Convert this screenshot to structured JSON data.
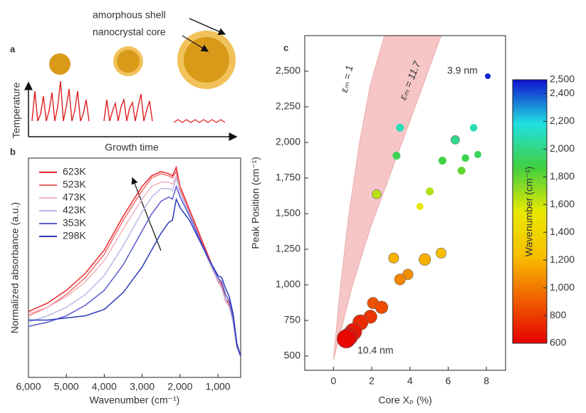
{
  "diagram": {
    "label": "a",
    "shell_label": "amorphous shell",
    "core_label": "nanocrystal core",
    "y_label": "Temperature",
    "x_label": "Growth time"
  },
  "chart_data": [
    {
      "type": "line",
      "panel_label": "b",
      "x_label": "Wavenumber (cm⁻¹)",
      "y_label": "Normalized absorbance (a.u.)",
      "xlim": [
        6000,
        400
      ],
      "ylim": [
        0,
        1
      ],
      "xticks": [
        {
          "value": 6000,
          "label": "6,000"
        },
        {
          "value": 5000,
          "label": "5,000"
        },
        {
          "value": 4000,
          "label": "4,000"
        },
        {
          "value": 3000,
          "label": "3,000"
        },
        {
          "value": 2000,
          "label": "2,000"
        },
        {
          "value": 1000,
          "label": "1,000"
        }
      ],
      "x": [
        6000,
        5500,
        5000,
        4500,
        4000,
        3500,
        3000,
        2750,
        2500,
        2300,
        2200,
        2100,
        2000,
        1750,
        1500,
        1250,
        1000,
        900,
        800,
        700,
        600,
        500,
        400
      ],
      "series": [
        {
          "name": "623K",
          "color": "#e8242a",
          "values": [
            0.29,
            0.33,
            0.39,
            0.47,
            0.58,
            0.74,
            0.88,
            0.93,
            0.95,
            0.94,
            0.93,
            0.97,
            0.88,
            0.77,
            0.66,
            0.55,
            0.44,
            0.42,
            0.35,
            0.33,
            0.25,
            0.12,
            0.08
          ]
        },
        {
          "name": "523K",
          "color": "#f06a6a",
          "values": [
            0.27,
            0.31,
            0.37,
            0.45,
            0.56,
            0.72,
            0.86,
            0.92,
            0.94,
            0.93,
            0.92,
            0.95,
            0.87,
            0.76,
            0.65,
            0.54,
            0.43,
            0.41,
            0.34,
            0.32,
            0.24,
            0.12,
            0.08
          ]
        },
        {
          "name": "473K",
          "color": "#f2b4c0",
          "values": [
            0.28,
            0.31,
            0.36,
            0.43,
            0.53,
            0.68,
            0.82,
            0.88,
            0.9,
            0.9,
            0.89,
            0.93,
            0.86,
            0.75,
            0.64,
            0.53,
            0.43,
            0.4,
            0.34,
            0.31,
            0.24,
            0.12,
            0.08
          ]
        },
        {
          "name": "423K",
          "color": "#b8b8e8",
          "values": [
            0.24,
            0.27,
            0.31,
            0.37,
            0.46,
            0.6,
            0.76,
            0.83,
            0.87,
            0.87,
            0.86,
            0.92,
            0.85,
            0.75,
            0.64,
            0.53,
            0.44,
            0.4,
            0.35,
            0.31,
            0.24,
            0.12,
            0.08
          ]
        },
        {
          "name": "353K",
          "color": "#5a5ad0",
          "values": [
            0.22,
            0.24,
            0.27,
            0.32,
            0.39,
            0.51,
            0.67,
            0.75,
            0.81,
            0.83,
            0.82,
            0.88,
            0.83,
            0.74,
            0.64,
            0.54,
            0.45,
            0.43,
            0.37,
            0.34,
            0.26,
            0.13,
            0.08
          ]
        },
        {
          "name": "298K",
          "color": "#2a3ab8",
          "values": [
            0.25,
            0.25,
            0.26,
            0.27,
            0.3,
            0.38,
            0.5,
            0.58,
            0.66,
            0.71,
            0.72,
            0.82,
            0.78,
            0.72,
            0.63,
            0.54,
            0.46,
            0.45,
            0.4,
            0.36,
            0.28,
            0.14,
            0.08
          ]
        }
      ]
    },
    {
      "type": "scatter",
      "panel_label": "c",
      "x_label": "Core Xₚ (%)",
      "y_label": "Peak Position (cm⁻¹)",
      "xlim": [
        -1.5,
        9
      ],
      "ylim": [
        400,
        2750
      ],
      "xticks": [
        0,
        2,
        4,
        6,
        8
      ],
      "yticks": [
        500,
        750,
        {
          "value": 1000,
          "label": "1,000"
        },
        {
          "value": 1250,
          "label": "1,250"
        },
        {
          "value": 1500,
          "label": "1,500"
        },
        {
          "value": 1750,
          "label": "1,750"
        },
        {
          "value": 2000,
          "label": "2,000"
        },
        {
          "value": 2250,
          "label": "2,250"
        },
        {
          "value": 2500,
          "label": "2,500"
        }
      ],
      "x": [
        8.07,
        3.48,
        7.33,
        6.37,
        3.3,
        6.9,
        7.55,
        6.7,
        5.7,
        2.26,
        5.04,
        4.52,
        3.15,
        4.78,
        5.63,
        3.89,
        3.48,
        2.07,
        2.52,
        1.93,
        1.41,
        1.04,
        0.81,
        0.67
      ],
      "values": [
        2465,
        2103,
        2103,
        2018,
        1907,
        1890,
        1915,
        1802,
        1872,
        1636,
        1656,
        1550,
        1188,
        1178,
        1223,
        1073,
        1038,
        872,
        842,
        776,
        736,
        671,
        636,
        621
      ],
      "sizes": [
        3.9,
        5.0,
        4.8,
        5.4,
        5.0,
        4.8,
        4.6,
        5.0,
        5.0,
        5.6,
        5.0,
        4.6,
        6.2,
        7.0,
        6.2,
        6.4,
        6.6,
        6.8,
        7.4,
        7.8,
        8.8,
        9.6,
        10.0,
        10.4
      ],
      "band": {
        "color": "#f6c6c6",
        "lower": {
          "x": [
            0,
            0.37,
            0.81,
            1.37,
            1.93,
            2.67
          ],
          "values": [
            475,
            997,
            1500,
            2003,
            2405,
            2750
          ]
        },
        "upper": {
          "x": [
            0,
            1.0,
            1.93,
            3.04,
            4.15,
            5.63
          ],
          "values": [
            475,
            997,
            1399,
            1801,
            2204,
            2750
          ]
        }
      },
      "annotations": [
        "3.9 nm",
        "10.4 nm",
        "εₘ = 1",
        "εₘ = 11.7"
      ],
      "colorbar": {
        "label": "Wavenumber (cm⁻¹)",
        "lim": [
          600,
          2500
        ],
        "ticks": [
          600,
          800,
          {
            "value": 1000,
            "label": "1,000"
          },
          {
            "value": 1200,
            "label": "1,200"
          },
          {
            "value": 1400,
            "label": "1,400"
          },
          {
            "value": 1600,
            "label": "1,600"
          },
          {
            "value": 1800,
            "label": "1,800"
          },
          {
            "value": 2000,
            "label": "2,000"
          },
          {
            "value": 2200,
            "label": "2,200"
          },
          {
            "value": 2400,
            "label": "2,400"
          },
          {
            "value": 2500,
            "label": "2,500"
          }
        ],
        "colors": [
          "#e60000",
          "#f06000",
          "#f8c000",
          "#e8e800",
          "#40d040",
          "#20e0e0",
          "#1010d0"
        ]
      }
    }
  ]
}
